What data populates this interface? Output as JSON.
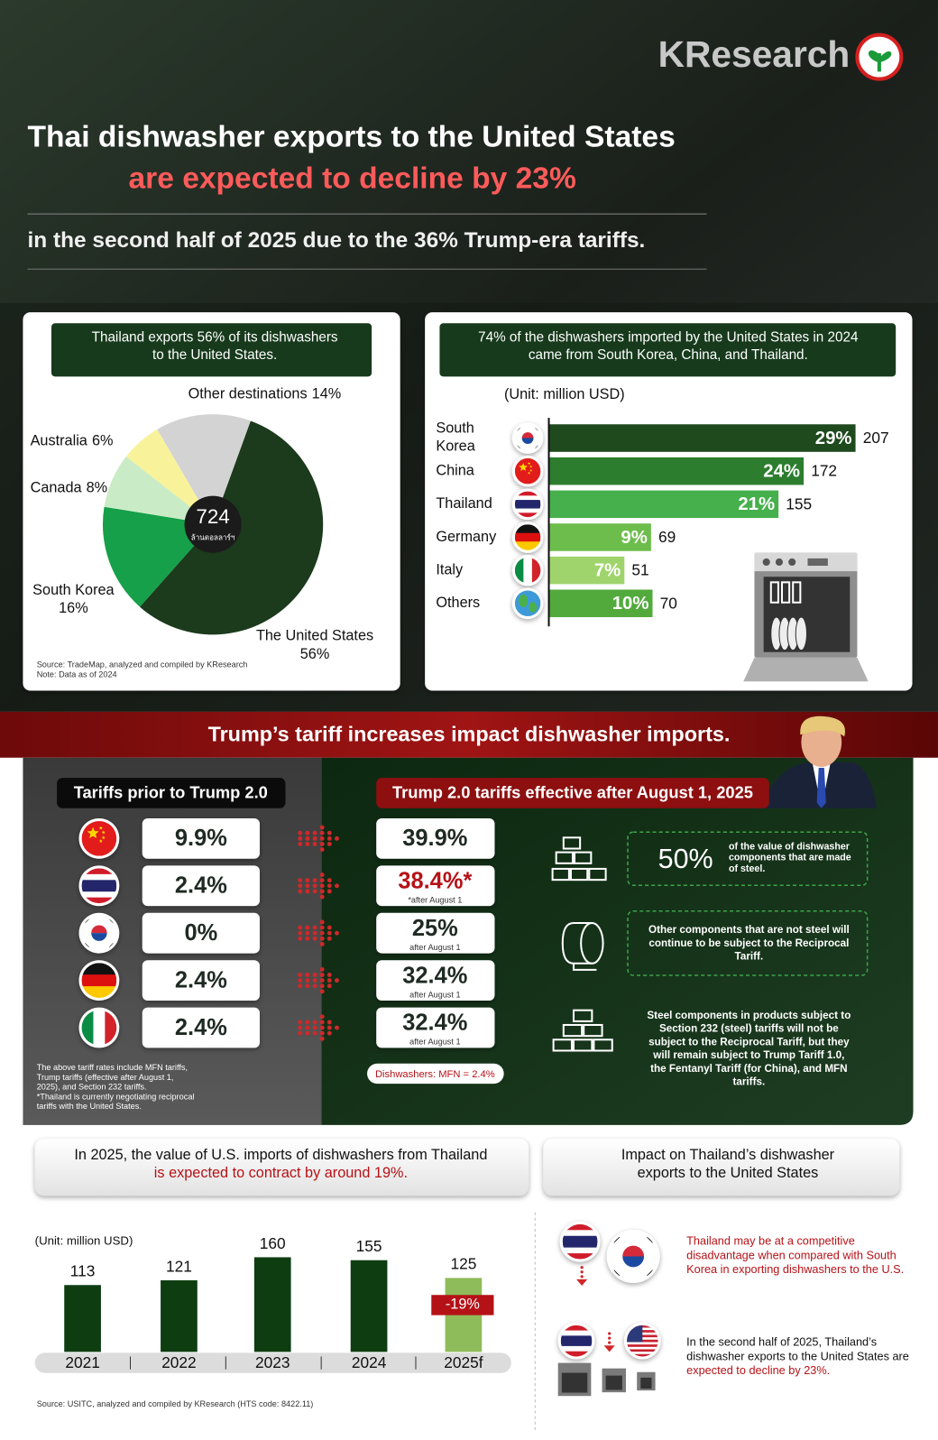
{
  "header": {
    "brand": "KResearch",
    "title": [
      "Thai dishwasher exports to the United States",
      "are expected to decline by 23%"
    ],
    "subtitle": "in the second half of 2025 due to the 36% Trump-era tariffs."
  },
  "chart_data": [
    {
      "type": "pie",
      "title": [
        "Thailand exports 56% of its dishwashers",
        "to the United States."
      ],
      "center_value": 724,
      "center_label": "ล้านดอลลาร์ฯ",
      "categories": [
        "The United States",
        "South Korea",
        "Canada",
        "Australia",
        "Other destinations"
      ],
      "values": [
        56,
        16,
        8,
        6,
        14
      ],
      "value_labels": [
        "56%",
        "16%",
        "8%",
        "6%",
        "14%"
      ],
      "colors": [
        "#1c3a1c",
        "#16a049",
        "#c9ecc6",
        "#f8f39b",
        "#d3d3d3"
      ],
      "source": [
        "Source: TradeMap, analyzed and compiled by KResearch",
        "Note: Data as of 2024"
      ]
    },
    {
      "type": "hbar",
      "title": [
        "74% of the dishwashers imported by the United States in 2024",
        "came  from South Korea, China, and Thailand."
      ],
      "unit": "(Unit: million USD)",
      "categories": [
        "South Korea",
        "China",
        "Thailand",
        "Germany",
        "Italy",
        "Others"
      ],
      "values": [
        207,
        172,
        155,
        69,
        51,
        70
      ],
      "share_labels": [
        "29%",
        "24%",
        "21%",
        "9%",
        "7%",
        "10%"
      ],
      "colors": [
        "#1e4a1e",
        "#2c7d2e",
        "#46b04c",
        "#6dbd4c",
        "#9fd46c",
        "#52aa3c"
      ],
      "xlim": [
        0,
        210
      ]
    },
    {
      "type": "bar",
      "title": [
        "In 2025, the value of U.S. imports of dishwashers from Thailand",
        "is expected to contract by around 19%."
      ],
      "unit": "(Unit: million USD)",
      "categories": [
        "2021",
        "2022",
        "2023",
        "2024",
        "2025f"
      ],
      "values": [
        113,
        121,
        160,
        155,
        125
      ],
      "colors": [
        "#0e3d12",
        "#0e3d12",
        "#0e3d12",
        "#0e3d12",
        "#8fbc5a"
      ],
      "ylim": [
        0,
        170
      ],
      "annotation": "-19%",
      "source": "Source: USITC, analyzed and compiled by KResearch (HTS code: 8422.11)"
    }
  ],
  "tariffs": {
    "title": "Trump’s tariff increases impact dishwasher imports.",
    "before_heading": "Tariffs prior to Trump 2.0",
    "after_heading": "Trump 2.0 tariffs effective after August 1, 2025",
    "rows": [
      {
        "before": "9.9%",
        "after": "39.9%"
      },
      {
        "before": "2.4%",
        "after": "38.4%*",
        "note": "*after August 1"
      },
      {
        "before": "0%",
        "after": "25%",
        "note": "after August 1"
      },
      {
        "before": "2.4%",
        "after": "32.4%",
        "note": "after August 1"
      },
      {
        "before": "2.4%",
        "after": "32.4%",
        "note": "after August 1"
      }
    ],
    "footnote": [
      "The above tariff rates include MFN tariffs,",
      "Trump tariffs (effective after August 1,",
      "2025), and Section 232 tariffs.",
      "*Thailand is currently negotiating reciprocal",
      "tariffs with the United States."
    ],
    "mfn": "Dishwashers: MFN = 2.4%",
    "points": [
      {
        "highlight": "50%",
        "text": [
          "of the value of dishwasher",
          "components that are made",
          "of steel."
        ]
      },
      {
        "text": [
          "Other components that are not steel will",
          "continue to be subject to the Reciprocal",
          "Tariff."
        ]
      },
      {
        "text": [
          "Steel components in products subject to",
          "Section 232 (steel) tariffs will not be",
          "subject to the Reciprocal Tariff, but they",
          "will remain subject to Trump Tariff 1.0,",
          "the Fentanyl Tariff (for China), and MFN",
          "tariffs."
        ]
      }
    ]
  },
  "impact": {
    "title": [
      "Impact on Thailand’s dishwasher",
      "exports to the United States"
    ],
    "points": [
      {
        "text": [
          "Thailand may be at a competitive",
          "disadvantage when compared with South",
          "Korea in exporting dishwashers to the U.S."
        ]
      },
      {
        "text": [
          "In the second half of 2025, Thailand’s",
          "dishwasher exports to the United States are"
        ],
        "highlight": "expected to decline by 23%."
      }
    ]
  }
}
